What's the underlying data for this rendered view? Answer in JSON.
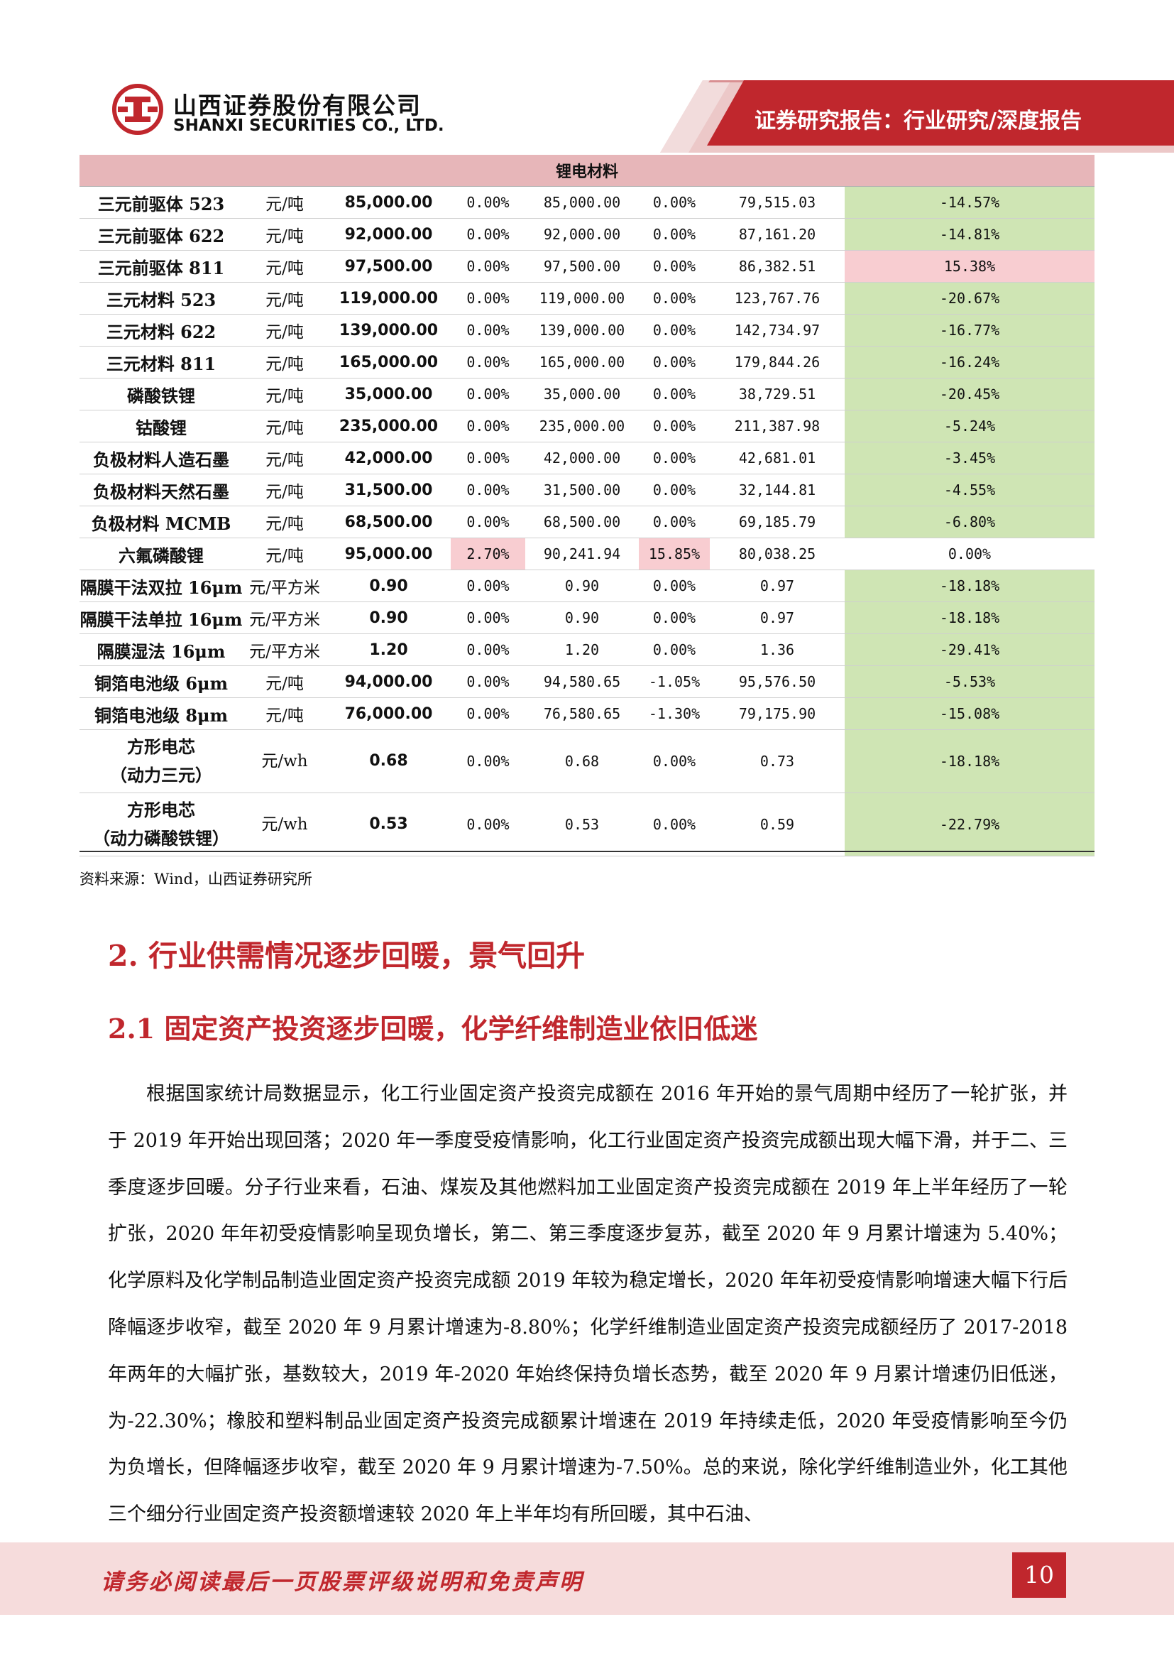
{
  "header": {
    "company_cn": "山西证券股份有限公司",
    "company_en": "SHANXI SECURITIES CO., LTD.",
    "report_type": "证券研究报告：行业研究/深度报告",
    "brand_color": "#c0272d",
    "logo_icon": "shanxi-securities-logo"
  },
  "table": {
    "category": "锂电材料",
    "rows": [
      {
        "name": [
          "三元前驱体 523"
        ],
        "unit": "元/吨",
        "price": "85,000.00",
        "c1": "0.00%",
        "p1": "85,000.00",
        "c2": "0.00%",
        "p2": "79,515.03",
        "c3": "-14.57%",
        "c1_hl": "",
        "c2_hl": "",
        "c3_hl": "neg"
      },
      {
        "name": [
          "三元前驱体 622"
        ],
        "unit": "元/吨",
        "price": "92,000.00",
        "c1": "0.00%",
        "p1": "92,000.00",
        "c2": "0.00%",
        "p2": "87,161.20",
        "c3": "-14.81%",
        "c1_hl": "",
        "c2_hl": "",
        "c3_hl": "neg"
      },
      {
        "name": [
          "三元前驱体 811"
        ],
        "unit": "元/吨",
        "price": "97,500.00",
        "c1": "0.00%",
        "p1": "97,500.00",
        "c2": "0.00%",
        "p2": "86,382.51",
        "c3": "15.38%",
        "c1_hl": "",
        "c2_hl": "",
        "c3_hl": "pos"
      },
      {
        "name": [
          "三元材料 523"
        ],
        "unit": "元/吨",
        "price": "119,000.00",
        "c1": "0.00%",
        "p1": "119,000.00",
        "c2": "0.00%",
        "p2": "123,767.76",
        "c3": "-20.67%",
        "c1_hl": "",
        "c2_hl": "",
        "c3_hl": "neg"
      },
      {
        "name": [
          "三元材料 622"
        ],
        "unit": "元/吨",
        "price": "139,000.00",
        "c1": "0.00%",
        "p1": "139,000.00",
        "c2": "0.00%",
        "p2": "142,734.97",
        "c3": "-16.77%",
        "c1_hl": "",
        "c2_hl": "",
        "c3_hl": "neg"
      },
      {
        "name": [
          "三元材料 811"
        ],
        "unit": "元/吨",
        "price": "165,000.00",
        "c1": "0.00%",
        "p1": "165,000.00",
        "c2": "0.00%",
        "p2": "179,844.26",
        "c3": "-16.24%",
        "c1_hl": "",
        "c2_hl": "",
        "c3_hl": "neg"
      },
      {
        "name": [
          "磷酸铁锂"
        ],
        "unit": "元/吨",
        "price": "35,000.00",
        "c1": "0.00%",
        "p1": "35,000.00",
        "c2": "0.00%",
        "p2": "38,729.51",
        "c3": "-20.45%",
        "c1_hl": "",
        "c2_hl": "",
        "c3_hl": "neg"
      },
      {
        "name": [
          "钴酸锂"
        ],
        "unit": "元/吨",
        "price": "235,000.00",
        "c1": "0.00%",
        "p1": "235,000.00",
        "c2": "0.00%",
        "p2": "211,387.98",
        "c3": "-5.24%",
        "c1_hl": "",
        "c2_hl": "",
        "c3_hl": "neg"
      },
      {
        "name": [
          "负极材料人造石墨"
        ],
        "unit": "元/吨",
        "price": "42,000.00",
        "c1": "0.00%",
        "p1": "42,000.00",
        "c2": "0.00%",
        "p2": "42,681.01",
        "c3": "-3.45%",
        "c1_hl": "",
        "c2_hl": "",
        "c3_hl": "neg"
      },
      {
        "name": [
          "负极材料天然石墨"
        ],
        "unit": "元/吨",
        "price": "31,500.00",
        "c1": "0.00%",
        "p1": "31,500.00",
        "c2": "0.00%",
        "p2": "32,144.81",
        "c3": "-4.55%",
        "c1_hl": "",
        "c2_hl": "",
        "c3_hl": "neg"
      },
      {
        "name": [
          "负极材料 MCMB"
        ],
        "unit": "元/吨",
        "price": "68,500.00",
        "c1": "0.00%",
        "p1": "68,500.00",
        "c2": "0.00%",
        "p2": "69,185.79",
        "c3": "-6.80%",
        "c1_hl": "",
        "c2_hl": "",
        "c3_hl": "neg"
      },
      {
        "name": [
          "六氟磷酸锂"
        ],
        "unit": "元/吨",
        "price": "95,000.00",
        "c1": "2.70%",
        "p1": "90,241.94",
        "c2": "15.85%",
        "p2": "80,038.25",
        "c3": "0.00%",
        "c1_hl": "pos",
        "c2_hl": "pos",
        "c3_hl": ""
      },
      {
        "name": [
          "隔膜干法双拉 16μm"
        ],
        "unit": "元/平方米",
        "price": "0.90",
        "c1": "0.00%",
        "p1": "0.90",
        "c2": "0.00%",
        "p2": "0.97",
        "c3": "-18.18%",
        "c1_hl": "",
        "c2_hl": "",
        "c3_hl": "neg"
      },
      {
        "name": [
          "隔膜干法单拉 16μm"
        ],
        "unit": "元/平方米",
        "price": "0.90",
        "c1": "0.00%",
        "p1": "0.90",
        "c2": "0.00%",
        "p2": "0.97",
        "c3": "-18.18%",
        "c1_hl": "",
        "c2_hl": "",
        "c3_hl": "neg"
      },
      {
        "name": [
          "隔膜湿法 16μm"
        ],
        "unit": "元/平方米",
        "price": "1.20",
        "c1": "0.00%",
        "p1": "1.20",
        "c2": "0.00%",
        "p2": "1.36",
        "c3": "-29.41%",
        "c1_hl": "",
        "c2_hl": "",
        "c3_hl": "neg"
      },
      {
        "name": [
          "铜箔电池级 6μm"
        ],
        "unit": "元/吨",
        "price": "94,000.00",
        "c1": "0.00%",
        "p1": "94,580.65",
        "c2": "-1.05%",
        "p2": "95,576.50",
        "c3": "-5.53%",
        "c1_hl": "",
        "c2_hl": "",
        "c3_hl": "neg"
      },
      {
        "name": [
          "铜箔电池级 8μm"
        ],
        "unit": "元/吨",
        "price": "76,000.00",
        "c1": "0.00%",
        "p1": "76,580.65",
        "c2": "-1.30%",
        "p2": "79,175.90",
        "c3": "-15.08%",
        "c1_hl": "",
        "c2_hl": "",
        "c3_hl": "neg"
      },
      {
        "name": [
          "方形电芯",
          "（动力三元）"
        ],
        "unit": "元/wh",
        "price": "0.68",
        "c1": "0.00%",
        "p1": "0.68",
        "c2": "0.00%",
        "p2": "0.73",
        "c3": "-18.18%",
        "c1_hl": "",
        "c2_hl": "",
        "c3_hl": "neg"
      },
      {
        "name": [
          "方形电芯",
          "（动力磷酸铁锂）"
        ],
        "unit": "元/wh",
        "price": "0.53",
        "c1": "0.00%",
        "p1": "0.53",
        "c2": "0.00%",
        "p2": "0.59",
        "c3": "-22.79%",
        "c1_hl": "",
        "c2_hl": "",
        "c3_hl": "neg"
      }
    ],
    "colors": {
      "neg": "#cfe5b4",
      "pos": "#f8cdd1",
      "category": "#e7b6b9"
    }
  },
  "source": "资料来源：Wind，山西证券研究所",
  "section": {
    "h2": "2. 行业供需情况逐步回暖，景气回升",
    "h3": "2.1  固定资产投资逐步回暖，化学纤维制造业依旧低迷",
    "paragraph": "根据国家统计局数据显示，化工行业固定资产投资完成额在 2016 年开始的景气周期中经历了一轮扩张，并于 2019 年开始出现回落；2020 年一季度受疫情影响，化工行业固定资产投资完成额出现大幅下滑，并于二、三季度逐步回暖。分子行业来看，石油、煤炭及其他燃料加工业固定资产投资完成额在 2019 年上半年经历了一轮扩张，2020 年年初受疫情影响呈现负增长，第二、第三季度逐步复苏，截至 2020 年 9 月累计增速为 5.40%；化学原料及化学制品制造业固定资产投资完成额 2019 年较为稳定增长，2020 年年初受疫情影响增速大幅下行后降幅逐步收窄，截至 2020 年 9 月累计增速为-8.80%；化学纤维制造业固定资产投资完成额经历了 2017-2018 年两年的大幅扩张，基数较大，2019 年-2020 年始终保持负增长态势，截至 2020 年 9 月累计增速仍旧低迷，为-22.30%；橡胶和塑料制品业固定资产投资完成额累计增速在 2019 年持续走低，2020 年受疫情影响至今仍为负增长，但降幅逐步收窄，截至 2020 年 9 月累计增速为-7.50%。总的来说，除化学纤维制造业外，化工其他三个细分行业固定资产投资额增速较 2020 年上半年均有所回暖，其中石油、"
  },
  "footer": {
    "disclaimer": "请务必阅读最后一页股票评级说明和免责声明",
    "page_number": "10"
  }
}
